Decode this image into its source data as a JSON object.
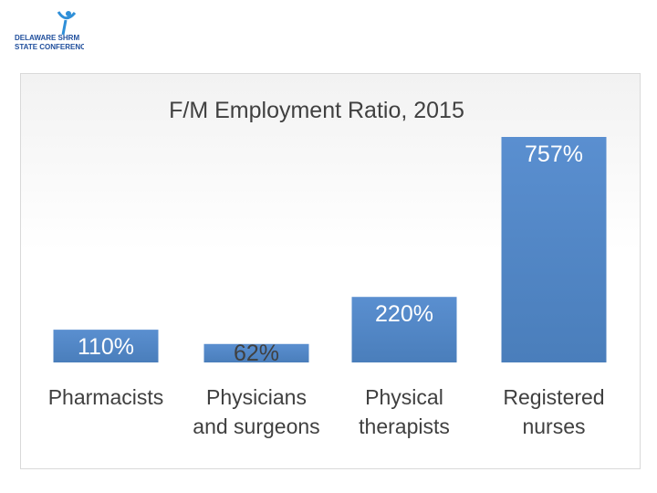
{
  "logo": {
    "line1": "DELAWARE SHRM",
    "line2": "STATE CONFERENCE"
  },
  "colors": {
    "bar": "#4a7ebb",
    "bar_light": "#5a8fd0",
    "text": "#404040",
    "logo_blue": "#1f4e9c"
  },
  "chart_data": {
    "type": "bar",
    "title": "F/M Employment Ratio, 2015",
    "categories": [
      [
        "Pharmacists"
      ],
      [
        "Physicians",
        "and surgeons"
      ],
      [
        "Physical",
        "therapists"
      ],
      [
        "Registered",
        "nurses"
      ]
    ],
    "values": [
      110,
      62,
      220,
      757
    ],
    "data_labels": [
      "110%",
      "62%",
      "220%",
      "757%"
    ],
    "unit": "%",
    "ylim": [
      0,
      757
    ],
    "grid": false,
    "legend": "none"
  }
}
